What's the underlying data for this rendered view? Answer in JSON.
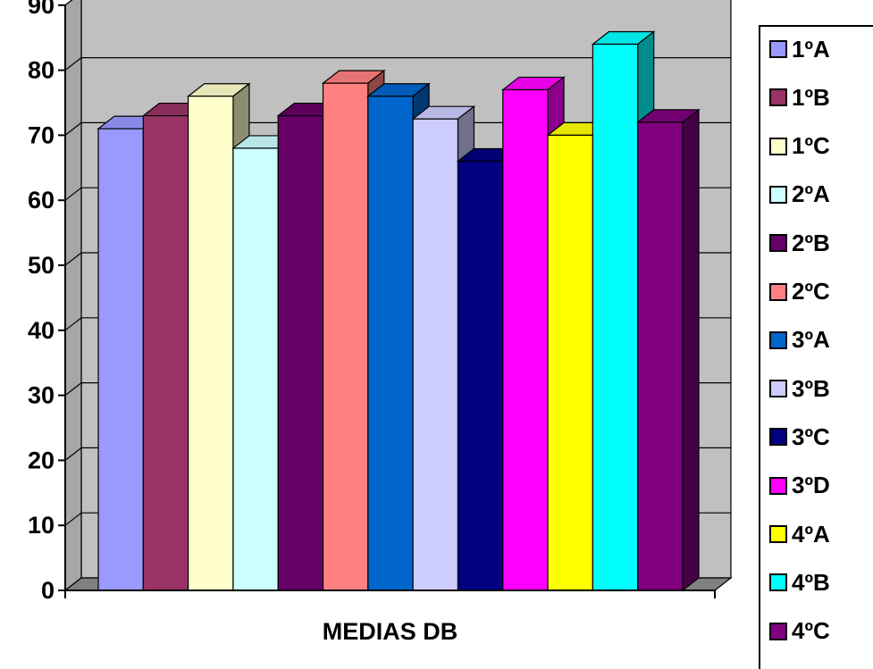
{
  "chart_data": {
    "type": "bar",
    "categories": [
      "MEDIAS DB"
    ],
    "ylim": [
      0,
      90
    ],
    "yticks": [
      0,
      10,
      20,
      30,
      40,
      50,
      60,
      70,
      80,
      90
    ],
    "grid": true,
    "legend_position": "right",
    "series": [
      {
        "name": "1ºA",
        "values": [
          71
        ],
        "color": "#9999ff"
      },
      {
        "name": "1ºB",
        "values": [
          73
        ],
        "color": "#993366"
      },
      {
        "name": "1ºC",
        "values": [
          76
        ],
        "color": "#ffffcc"
      },
      {
        "name": "2ºA",
        "values": [
          68
        ],
        "color": "#ccffff"
      },
      {
        "name": "2ºB",
        "values": [
          73
        ],
        "color": "#660066"
      },
      {
        "name": "2ºC",
        "values": [
          78
        ],
        "color": "#ff8080"
      },
      {
        "name": "3ºA",
        "values": [
          76
        ],
        "color": "#0066cc"
      },
      {
        "name": "3ºB",
        "values": [
          72.5
        ],
        "color": "#ccccff"
      },
      {
        "name": "3ºC",
        "values": [
          66
        ],
        "color": "#000080"
      },
      {
        "name": "3ºD",
        "values": [
          77
        ],
        "color": "#ff00ff"
      },
      {
        "name": "4ºA",
        "values": [
          70
        ],
        "color": "#ffff00"
      },
      {
        "name": "4ºB",
        "values": [
          84
        ],
        "color": "#00ffff"
      },
      {
        "name": "4ºC",
        "values": [
          72
        ],
        "color": "#800080"
      }
    ]
  }
}
